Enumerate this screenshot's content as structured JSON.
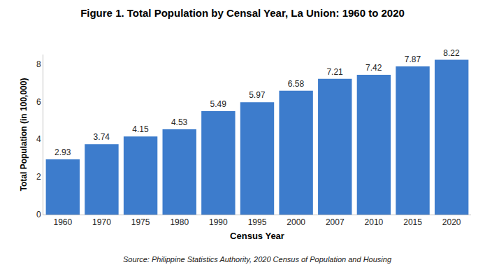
{
  "chart_data": {
    "type": "bar",
    "title": "Figure 1. Total Population by Censal Year, La Union: 1960 to 2020",
    "x_label": "Census Year",
    "y_label": "Total Population (in 100,000)",
    "annotations": [
      "Source: Philippine Statistics Authority, 2020 Census of Population and Housing"
    ],
    "categories": [
      "1960",
      "1970",
      "1975",
      "1980",
      "1990",
      "1995",
      "2000",
      "2007",
      "2010",
      "2015",
      "2020"
    ],
    "values": [
      2.93,
      3.74,
      4.15,
      4.53,
      5.49,
      5.97,
      6.58,
      7.21,
      7.42,
      7.87,
      8.22
    ],
    "color": "#3d7ccc",
    "ylim": [
      0,
      8.5
    ],
    "yticks": [
      0,
      2,
      4,
      6,
      8
    ],
    "grid": false,
    "data_labels": true
  }
}
